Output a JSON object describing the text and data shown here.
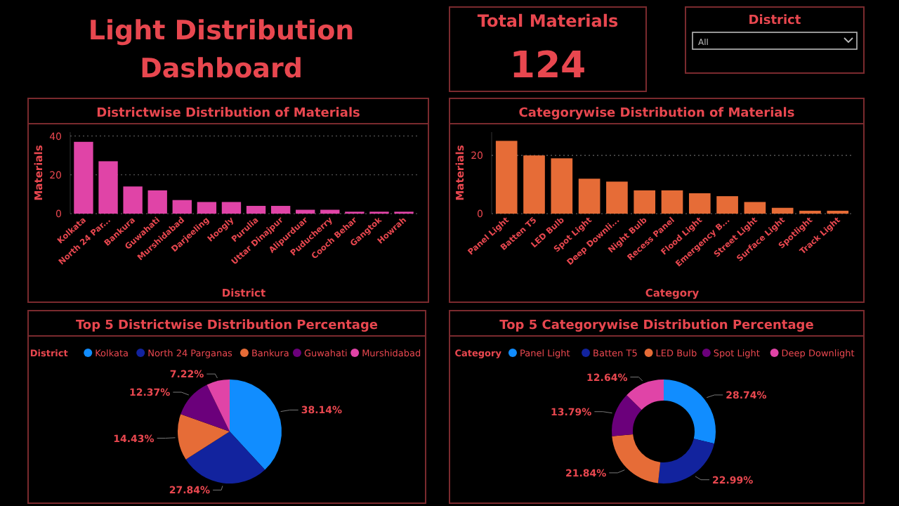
{
  "chart_data": [
    {
      "type": "other",
      "title": "Light Distribution Dashboard"
    },
    {
      "type": "other",
      "title": "Total Materials",
      "annotations": [
        "124"
      ]
    },
    {
      "type": "other",
      "title": "District",
      "annotations": [
        "All"
      ]
    },
    {
      "type": "bar",
      "title": "Districtwise Distribution of Materials",
      "xlabel": "District",
      "ylabel": "Materials",
      "categories": [
        "Kolkata",
        "North 24 Par...",
        "Bankura",
        "Guwahati",
        "Murshidabad",
        "Darjeeling",
        "Hoogly",
        "Purulia",
        "Uttar Dinajpur",
        "Alipurduar",
        "Puducherry",
        "Cooch Behar",
        "Gangtok",
        "Howrah"
      ],
      "values": [
        37,
        27,
        14,
        12,
        7,
        6,
        6,
        4,
        4,
        2,
        2,
        1,
        1,
        1
      ],
      "color": "#e044a7",
      "ylim": [
        0,
        42
      ],
      "yticks": [
        0,
        20,
        40
      ],
      "grid": "y",
      "line_style": "dotted"
    },
    {
      "type": "bar",
      "title": "Categorywise Distribution of Materials",
      "xlabel": "Category",
      "ylabel": "Materials",
      "categories": [
        "Panel Light",
        "Batten T5",
        "LED Bulb",
        "Spot Light",
        "Deep Downli...",
        "Night Bulb",
        "Recess Panel",
        "Flood Light",
        "Emergency B...",
        "Street Light",
        "Surface Light",
        "Spotlight",
        "Track Light"
      ],
      "values": [
        25,
        20,
        19,
        12,
        11,
        8,
        8,
        7,
        6,
        4,
        2,
        1,
        1
      ],
      "color": "#e66c37",
      "ylim": [
        0,
        28
      ],
      "yticks": [
        0,
        20
      ],
      "grid": "y",
      "line_style": "dotted"
    },
    {
      "type": "pie",
      "title": "Top 5 Districtwise Distribution Percentage",
      "legend_title": "District",
      "legend": "top",
      "categories": [
        "Kolkata",
        "North 24 Parganas",
        "Bankura",
        "Guwahati",
        "Murshidabad"
      ],
      "values": [
        38.14,
        27.84,
        14.43,
        12.37,
        7.22
      ],
      "value_labels": [
        "38.14%",
        "27.84%",
        "14.43%",
        "12.37%",
        "7.22%"
      ],
      "colors": [
        "#118dff",
        "#12239e",
        "#e66c37",
        "#6b007b",
        "#e044a7"
      ]
    },
    {
      "type": "donut",
      "title": "Top 5 Categorywise Distribution Percentage",
      "legend_title": "Category",
      "legend": "top",
      "categories": [
        "Panel Light",
        "Batten T5",
        "LED Bulb",
        "Spot Light",
        "Deep Downlight"
      ],
      "values": [
        28.74,
        22.99,
        21.84,
        13.79,
        12.64
      ],
      "value_labels": [
        "28.74%",
        "22.99%",
        "21.84%",
        "13.79%",
        "12.64%"
      ],
      "colors": [
        "#118dff",
        "#12239e",
        "#e66c37",
        "#6b007b",
        "#e044a7"
      ]
    }
  ]
}
